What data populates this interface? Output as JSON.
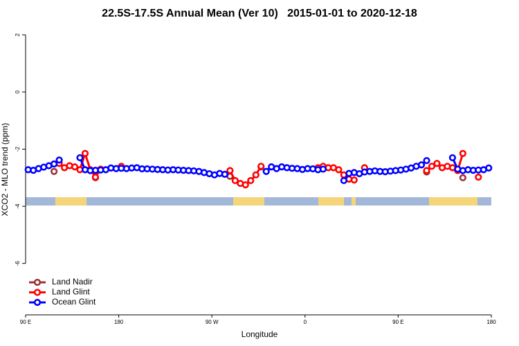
{
  "chart_data": {
    "type": "line",
    "title": "22.5S-17.5S Annual Mean (Ver 10)   2015-01-01 to 2020-12-18",
    "xlabel": "Longitude",
    "ylabel": "XCO2 - MLO trend (ppm)",
    "xlim": [
      90,
      540
    ],
    "xticks": [
      {
        "value": 90,
        "label": "90 E"
      },
      {
        "value": 180,
        "label": "180"
      },
      {
        "value": 270,
        "label": "90 W"
      },
      {
        "value": 360,
        "label": "0"
      },
      {
        "value": 450,
        "label": "90 E"
      },
      {
        "value": 540,
        "label": "180"
      }
    ],
    "ylim": [
      -7.8,
      2.3
    ],
    "yticks": [
      2,
      0,
      -2,
      -4,
      -6
    ],
    "legend": "bottom-left",
    "series": [
      {
        "name": "Land Nadir",
        "color": "#993333",
        "x": [
          117.5,
          137.5,
          157.5,
          222.5,
          287.5,
          302.5,
          317.5,
          397.5,
          477.5,
          497.5,
          512.5
        ],
        "values": [
          -2.78,
          null,
          -3.0,
          null,
          -2.95,
          null,
          -2.62,
          null,
          -2.8,
          null,
          -3.0
        ]
      },
      {
        "name": "Land Glint",
        "color": "#ff0000",
        "x": [
          117.5,
          122.5,
          127.5,
          132.5,
          137.5,
          142.5,
          147.5,
          152.5,
          157.5,
          162.5,
          172.5,
          182.5,
          192.5,
          287.5,
          292.5,
          297.5,
          302.5,
          307.5,
          312.5,
          317.5,
          347.5,
          372.5,
          377.5,
          382.5,
          387.5,
          392.5,
          397.5,
          402.5,
          407.5,
          412.5,
          417.5,
          427.5,
          477.5,
          482.5,
          487.5,
          492.5,
          497.5,
          502.5,
          507.5,
          512.5,
          517.5,
          527.5
        ],
        "values": [
          -2.52,
          -2.5,
          -2.65,
          -2.58,
          -2.62,
          -2.72,
          -2.15,
          -2.72,
          -2.98,
          -2.7,
          null,
          -2.6,
          null,
          -2.75,
          -3.1,
          -3.2,
          -3.25,
          -3.1,
          -2.9,
          -2.6,
          null,
          -2.65,
          -2.6,
          -2.65,
          -2.65,
          -2.72,
          -2.9,
          -3.05,
          -3.08,
          null,
          -2.65,
          null,
          -2.75,
          -2.6,
          -2.5,
          -2.65,
          -2.6,
          -2.65,
          -2.75,
          -2.15,
          null,
          -2.98
        ]
      },
      {
        "name": "Ocean Glint",
        "color": "#0000ff",
        "x": [
          92.5,
          97.5,
          102.5,
          107.5,
          112.5,
          117.5,
          122.5,
          127.5,
          132.5,
          137.5,
          142.5,
          147.5,
          152.5,
          157.5,
          162.5,
          167.5,
          172.5,
          177.5,
          182.5,
          187.5,
          192.5,
          197.5,
          202.5,
          207.5,
          212.5,
          217.5,
          222.5,
          227.5,
          232.5,
          237.5,
          242.5,
          247.5,
          252.5,
          257.5,
          262.5,
          267.5,
          272.5,
          277.5,
          282.5,
          287.5,
          292.5,
          297.5,
          302.5,
          307.5,
          312.5,
          317.5,
          322.5,
          327.5,
          332.5,
          337.5,
          342.5,
          347.5,
          352.5,
          357.5,
          362.5,
          367.5,
          372.5,
          377.5,
          382.5,
          387.5,
          392.5,
          397.5,
          402.5,
          407.5,
          412.5,
          417.5,
          422.5,
          427.5,
          432.5,
          437.5,
          442.5,
          447.5,
          452.5,
          457.5,
          462.5,
          467.5,
          472.5,
          477.5,
          482.5,
          487.5,
          492.5,
          497.5,
          502.5,
          507.5,
          512.5,
          517.5,
          522.5,
          527.5,
          532.5,
          537.5
        ],
        "values": [
          -2.72,
          -2.74,
          -2.68,
          -2.63,
          -2.58,
          -2.52,
          -2.38,
          null,
          null,
          null,
          -2.3,
          -2.72,
          -2.75,
          -2.74,
          -2.73,
          -2.72,
          -2.66,
          -2.68,
          -2.67,
          -2.68,
          -2.66,
          -2.65,
          -2.69,
          -2.69,
          -2.7,
          -2.71,
          -2.72,
          -2.73,
          -2.72,
          -2.73,
          -2.74,
          -2.75,
          -2.76,
          -2.78,
          -2.82,
          -2.86,
          -2.9,
          -2.85,
          -2.88,
          null,
          null,
          null,
          null,
          null,
          null,
          null,
          -2.78,
          -2.62,
          -2.68,
          -2.62,
          -2.65,
          -2.67,
          -2.68,
          -2.71,
          -2.68,
          -2.69,
          -2.72,
          -2.7,
          null,
          null,
          null,
          -3.1,
          -2.85,
          -2.82,
          -2.86,
          -2.8,
          -2.78,
          -2.76,
          -2.78,
          -2.79,
          -2.77,
          -2.75,
          -2.73,
          -2.7,
          -2.66,
          -2.6,
          -2.55,
          -2.4,
          null,
          null,
          null,
          null,
          -2.3,
          -2.7,
          -2.75,
          -2.72,
          -2.74,
          -2.73,
          -2.72,
          -2.66
        ]
      }
    ]
  }
}
